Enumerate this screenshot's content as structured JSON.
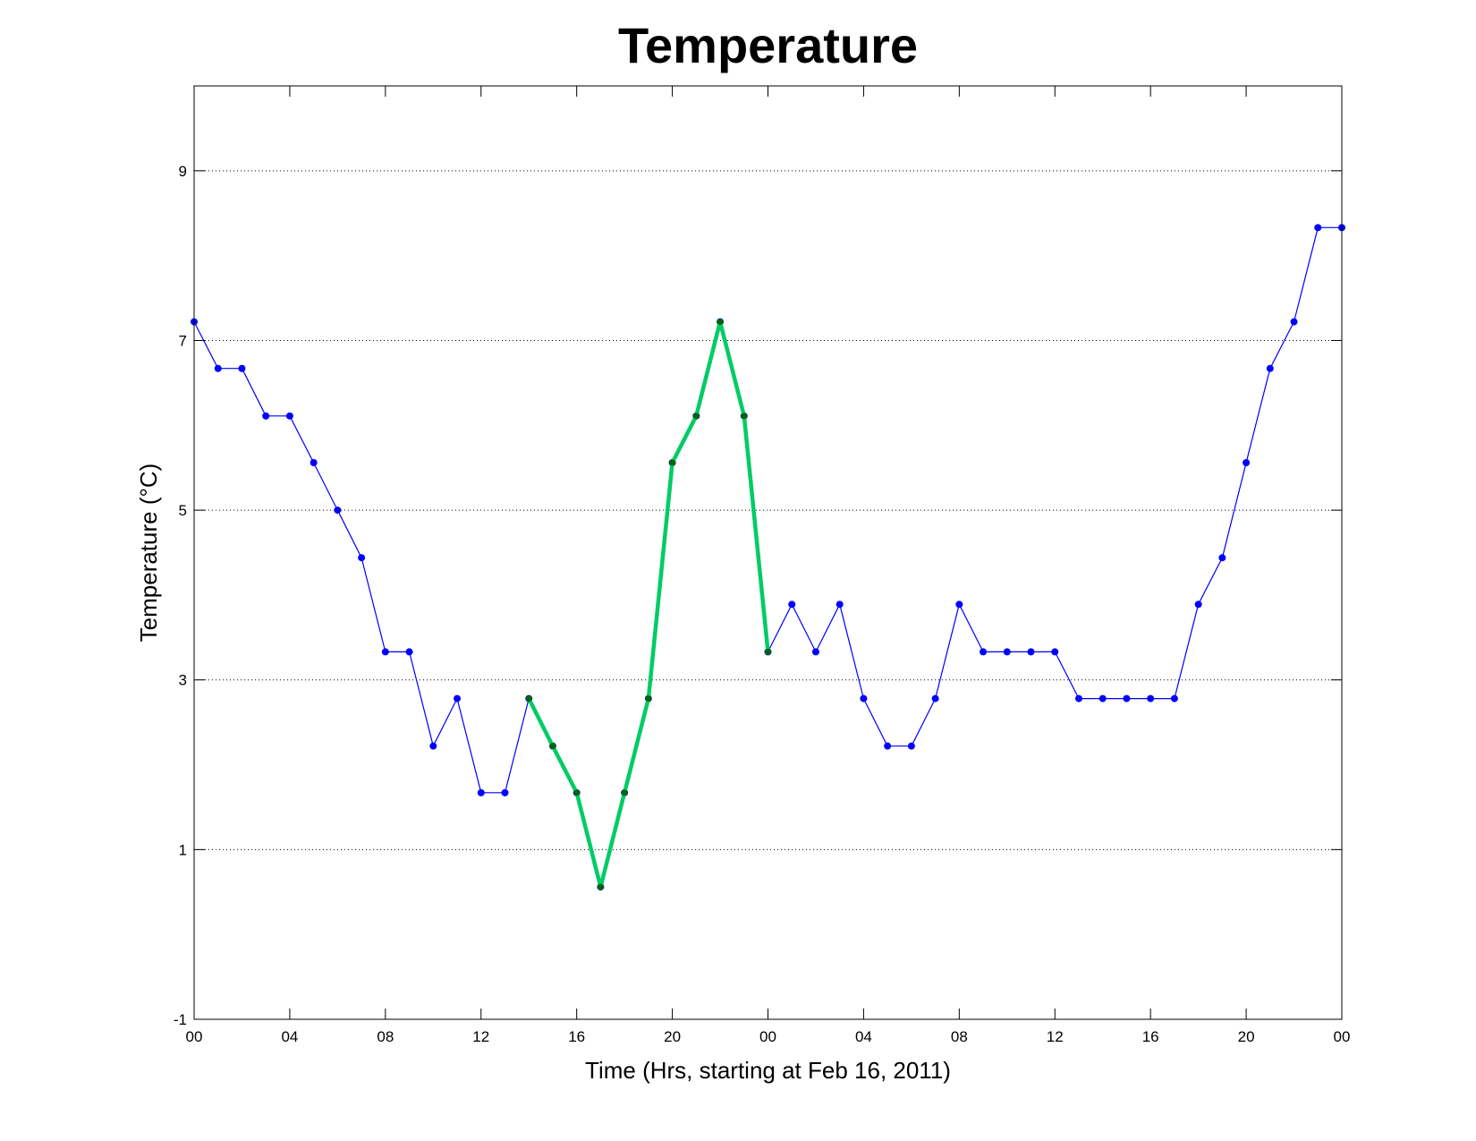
{
  "chart_data": {
    "type": "line",
    "title": "Temperature",
    "xlabel": "Time (Hrs, starting at Feb 16, 2011)",
    "ylabel": "Temperature (°C)",
    "xlim": [
      0,
      48
    ],
    "ylim": [
      -1,
      10
    ],
    "x_tick_values": [
      0,
      4,
      8,
      12,
      16,
      20,
      24,
      28,
      32,
      36,
      40,
      44,
      48
    ],
    "x_tick_labels": [
      "00",
      "04",
      "08",
      "12",
      "16",
      "20",
      "00",
      "04",
      "08",
      "12",
      "16",
      "20",
      "00"
    ],
    "y_tick_values": [
      -1,
      1,
      3,
      5,
      7,
      9
    ],
    "y_tick_labels": [
      "-1",
      "1",
      "3",
      "5",
      "7",
      "9"
    ],
    "grid": "horizontal dotted",
    "series": [
      {
        "color": "#0000ff",
        "x": [
          0,
          1,
          2,
          3,
          4,
          5,
          6,
          7,
          8,
          9,
          10,
          11,
          12,
          13,
          14,
          15,
          16,
          17,
          18,
          19,
          20,
          21,
          22,
          23,
          24,
          25,
          26,
          27,
          28,
          29,
          30,
          31,
          32,
          33,
          34,
          35,
          36,
          37,
          38,
          39,
          40,
          41,
          42,
          43,
          44,
          45,
          46,
          47,
          48
        ],
        "values": [
          7.22,
          6.67,
          6.67,
          6.11,
          6.11,
          5.56,
          5.0,
          4.44,
          3.33,
          3.33,
          2.22,
          2.78,
          1.67,
          1.67,
          2.78,
          2.22,
          1.67,
          0.56,
          1.67,
          2.78,
          5.56,
          6.11,
          7.22,
          6.11,
          3.33,
          3.89,
          3.33,
          3.89,
          2.78,
          2.22,
          2.22,
          2.78,
          3.89,
          3.33,
          3.33,
          3.33,
          3.33,
          2.78,
          2.78,
          2.78,
          2.78,
          2.78,
          3.89,
          4.44,
          5.56,
          6.67,
          7.22,
          8.33,
          8.33
        ]
      },
      {
        "color": "#00cc66",
        "x": [
          14,
          15,
          16,
          17,
          18,
          19,
          20,
          21,
          22,
          23,
          24
        ],
        "values": [
          2.78,
          2.22,
          1.67,
          0.56,
          1.67,
          2.78,
          5.56,
          6.11,
          7.22,
          6.11,
          3.33
        ]
      }
    ]
  }
}
